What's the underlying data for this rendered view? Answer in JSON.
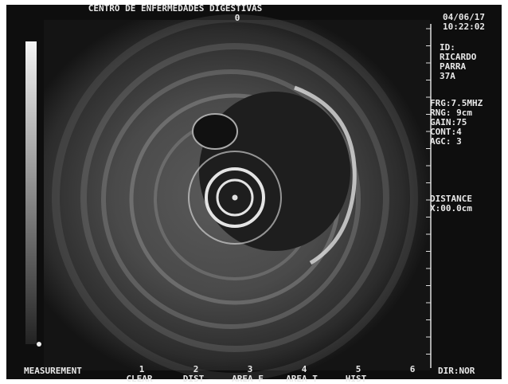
{
  "header": {
    "title": "CENTRO DE ENFERMEDADES DIGESTIVAS",
    "marker": "0"
  },
  "info": {
    "date": "04/06/17",
    "time": "10:22:02",
    "id_label": "ID:",
    "name_lines": [
      "RICARDO",
      "PARRA",
      "37A"
    ]
  },
  "settings": [
    "FRG:7.5MHZ",
    "RNG: 9cm",
    "GAIN:75",
    "CONT:4",
    "AGC: 3"
  ],
  "distance": {
    "label": "DISTANCE",
    "value": "X:00.0cm"
  },
  "footer": {
    "measurement": "MEASUREMENT",
    "keys": [
      "1",
      "2",
      "3",
      "4",
      "5",
      "6"
    ],
    "functions": [
      "CLEAR",
      "DIST",
      "AREA F",
      "AREA T",
      "HIST"
    ],
    "dir": "DIR:NOR"
  }
}
